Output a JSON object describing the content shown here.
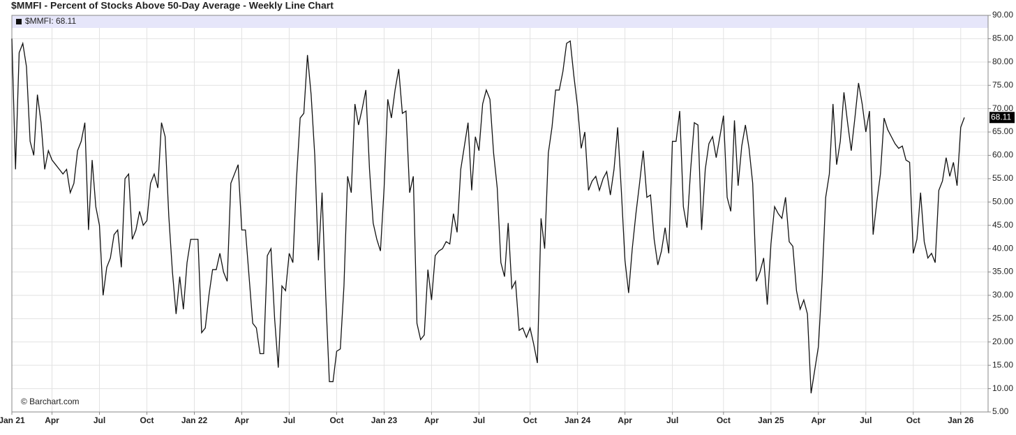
{
  "chart_data": {
    "type": "line",
    "title": "$MMFI - Percent of Stocks Above 50-Day Average - Weekly Line Chart",
    "legend": "$MMFI: 68.11",
    "last_value_label": "68.11",
    "credit": "© Barchart.com",
    "grid": true,
    "series": [
      {
        "name": "$MMFI",
        "color": "#111111",
        "values": [
          85,
          57,
          82,
          84,
          79,
          63,
          60,
          73,
          67,
          57,
          61,
          59,
          58,
          57,
          56,
          57,
          52,
          54,
          61,
          63,
          67,
          44,
          59,
          49,
          45,
          30,
          36,
          38,
          43,
          44,
          36,
          55,
          56,
          42,
          44,
          48,
          45,
          46,
          54,
          56,
          53,
          67,
          64,
          47,
          35,
          26,
          34,
          27,
          37,
          42,
          42,
          42,
          22,
          23,
          30,
          35.5,
          35.5,
          39,
          35,
          33,
          54,
          56,
          58,
          44,
          44,
          34,
          24,
          23,
          17.5,
          17.5,
          38.5,
          40,
          25,
          14.5,
          32,
          31,
          39,
          37,
          55,
          68,
          69,
          81.5,
          73,
          60,
          37.5,
          52,
          30,
          11.5,
          11.5,
          18,
          18.5,
          32,
          55.5,
          52,
          71,
          66.5,
          70,
          74,
          57,
          45.5,
          42,
          39.5,
          53,
          72,
          68,
          74,
          78.5,
          69,
          69.5,
          52,
          55.5,
          24,
          20.5,
          21.5,
          35.5,
          29,
          38.5,
          39.5,
          40,
          41.5,
          41,
          47.5,
          43.5,
          57,
          62,
          67,
          52.5,
          64,
          61,
          71,
          74,
          72,
          60.5,
          53,
          37,
          34,
          45.5,
          31.5,
          33,
          22.5,
          23,
          21,
          23,
          19.5,
          15.5,
          46.5,
          40,
          60.5,
          66,
          74,
          74,
          78,
          84,
          84.5,
          77,
          70.5,
          61.5,
          65,
          52.5,
          54.5,
          55.5,
          52.5,
          55,
          56.5,
          51.5,
          57,
          66,
          52.5,
          37.5,
          30.5,
          40,
          47.5,
          54,
          61,
          51,
          51.5,
          42,
          36.5,
          39.5,
          44.5,
          39,
          63,
          63,
          69.5,
          49,
          44.5,
          57,
          67,
          66.5,
          44,
          57,
          62.5,
          64,
          59.5,
          64,
          68.5,
          51,
          48,
          67.5,
          53.5,
          62,
          66.5,
          61.5,
          54,
          33,
          35,
          38,
          28,
          41,
          49,
          47.5,
          46.5,
          51,
          41.5,
          40.5,
          31,
          27,
          29,
          26,
          9,
          14,
          19,
          33,
          51,
          56,
          71,
          58,
          63,
          73.5,
          67,
          61,
          68,
          75.5,
          71,
          65,
          69.5,
          43,
          50,
          56,
          68,
          65.5,
          64,
          62.5,
          61.5,
          62,
          59,
          58.5,
          39,
          42,
          52,
          41.5,
          38,
          39,
          37,
          52.5,
          54.5,
          59.5,
          55.5,
          58.5,
          53.5,
          66,
          68.11
        ]
      }
    ],
    "xlim": [
      0,
      267.5
    ],
    "xticks": [
      {
        "value": 0,
        "label": "Jan 21"
      },
      {
        "value": 11,
        "label": "Apr"
      },
      {
        "value": 24,
        "label": "Jul"
      },
      {
        "value": 37,
        "label": "Oct"
      },
      {
        "value": 50,
        "label": "Jan 22"
      },
      {
        "value": 63,
        "label": "Apr"
      },
      {
        "value": 76,
        "label": "Jul"
      },
      {
        "value": 89,
        "label": "Oct"
      },
      {
        "value": 102,
        "label": "Jan 23"
      },
      {
        "value": 115,
        "label": "Apr"
      },
      {
        "value": 128,
        "label": "Jul"
      },
      {
        "value": 142,
        "label": "Oct"
      },
      {
        "value": 155,
        "label": "Jan 24"
      },
      {
        "value": 168,
        "label": "Apr"
      },
      {
        "value": 181,
        "label": "Jul"
      },
      {
        "value": 195,
        "label": "Oct"
      },
      {
        "value": 208,
        "label": "Jan 25"
      },
      {
        "value": 221,
        "label": "Apr"
      },
      {
        "value": 234,
        "label": "Jul"
      },
      {
        "value": 247,
        "label": "Oct"
      },
      {
        "value": 260,
        "label": "Jan 26"
      }
    ],
    "ylim": [
      5,
      90
    ],
    "yticks": [
      {
        "value": 5,
        "label": "5.00"
      },
      {
        "value": 10,
        "label": "10.00"
      },
      {
        "value": 15,
        "label": "15.00"
      },
      {
        "value": 20,
        "label": "20.00"
      },
      {
        "value": 25,
        "label": "25.00"
      },
      {
        "value": 30,
        "label": "30.00"
      },
      {
        "value": 35,
        "label": "35.00"
      },
      {
        "value": 40,
        "label": "40.00"
      },
      {
        "value": 45,
        "label": "45.00"
      },
      {
        "value": 50,
        "label": "50.00"
      },
      {
        "value": 55,
        "label": "55.00"
      },
      {
        "value": 60,
        "label": "60.00"
      },
      {
        "value": 65,
        "label": "65.00"
      },
      {
        "value": 70,
        "label": "70.00"
      },
      {
        "value": 75,
        "label": "75.00"
      },
      {
        "value": 80,
        "label": "80.00"
      },
      {
        "value": 85,
        "label": "85.00"
      },
      {
        "value": 90,
        "label": "90.00"
      }
    ]
  }
}
